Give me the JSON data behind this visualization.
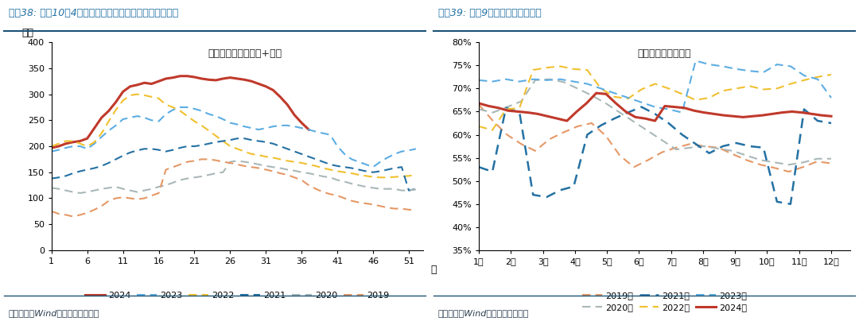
{
  "chart1": {
    "title": "国内沥青库存：社库+厂库",
    "xlabel": "周",
    "ylabel": "万吨",
    "header": "图表38: 截至10月4日，沥青延续快速去库、但绝对值仍高",
    "footer": "资料来源：Wind，国盛证券研究所",
    "ylim": [
      0,
      400
    ],
    "yticks": [
      0,
      50,
      100,
      150,
      200,
      250,
      300,
      350,
      400
    ],
    "xticks": [
      1,
      6,
      11,
      16,
      21,
      26,
      31,
      36,
      41,
      46,
      51
    ],
    "series": {
      "2024": {
        "color": "#c0392b",
        "linestyle": "solid",
        "linewidth": 2.2,
        "data_x": [
          1,
          2,
          3,
          4,
          5,
          6,
          7,
          8,
          9,
          10,
          11,
          12,
          13,
          14,
          15,
          16,
          17,
          18,
          19,
          20,
          21,
          22,
          23,
          24,
          25,
          26,
          27,
          28,
          29,
          30,
          31,
          32,
          33,
          34,
          35,
          36,
          37
        ],
        "data_y": [
          197,
          200,
          205,
          208,
          210,
          215,
          235,
          255,
          268,
          285,
          305,
          315,
          318,
          322,
          320,
          325,
          330,
          332,
          335,
          335,
          333,
          330,
          328,
          327,
          330,
          332,
          330,
          328,
          325,
          320,
          315,
          308,
          295,
          280,
          260,
          245,
          232
        ]
      },
      "2023": {
        "color": "#5dade2",
        "linestyle": "dashed",
        "linewidth": 1.5,
        "data_x": [
          1,
          2,
          3,
          4,
          5,
          6,
          7,
          8,
          9,
          10,
          11,
          12,
          13,
          14,
          15,
          16,
          17,
          18,
          19,
          20,
          21,
          22,
          23,
          24,
          25,
          26,
          27,
          28,
          29,
          30,
          31,
          32,
          33,
          34,
          35,
          36,
          37,
          38,
          39,
          40,
          41,
          42,
          43,
          44,
          45,
          46,
          47,
          48,
          49,
          50,
          51,
          52
        ],
        "data_y": [
          190,
          193,
          197,
          200,
          200,
          195,
          205,
          218,
          230,
          240,
          252,
          255,
          258,
          255,
          250,
          248,
          262,
          270,
          275,
          275,
          272,
          268,
          262,
          258,
          252,
          245,
          242,
          238,
          235,
          232,
          235,
          238,
          240,
          240,
          238,
          235,
          232,
          228,
          225,
          222,
          200,
          185,
          175,
          170,
          165,
          160,
          170,
          178,
          185,
          190,
          192,
          195
        ]
      },
      "2022": {
        "color": "#f0c030",
        "linestyle": "dashed",
        "linewidth": 1.5,
        "data_x": [
          1,
          2,
          3,
          4,
          5,
          6,
          7,
          8,
          9,
          10,
          11,
          12,
          13,
          14,
          15,
          16,
          17,
          18,
          19,
          20,
          21,
          22,
          23,
          24,
          25,
          26,
          27,
          28,
          29,
          30,
          31,
          32,
          33,
          34,
          35,
          36,
          37,
          38,
          39,
          40,
          41,
          42,
          43,
          44,
          45,
          46,
          47,
          48,
          49,
          50,
          51,
          52
        ],
        "data_y": [
          200,
          205,
          210,
          210,
          205,
          200,
          208,
          225,
          248,
          270,
          288,
          298,
          300,
          298,
          295,
          292,
          280,
          275,
          268,
          258,
          248,
          240,
          230,
          220,
          210,
          200,
          195,
          190,
          185,
          183,
          180,
          178,
          175,
          172,
          170,
          168,
          165,
          162,
          158,
          155,
          152,
          150,
          148,
          145,
          143,
          141,
          140,
          140,
          141,
          142,
          143,
          145
        ]
      },
      "2021": {
        "color": "#2471a3",
        "linestyle": "dashed",
        "linewidth": 1.5,
        "data_x": [
          1,
          2,
          3,
          4,
          5,
          6,
          7,
          8,
          9,
          10,
          11,
          12,
          13,
          14,
          15,
          16,
          17,
          18,
          19,
          20,
          21,
          22,
          23,
          24,
          25,
          26,
          27,
          28,
          29,
          30,
          31,
          32,
          33,
          34,
          35,
          36,
          37,
          38,
          39,
          40,
          41,
          42,
          43,
          44,
          45,
          46,
          47,
          48,
          49,
          50,
          51,
          52
        ],
        "data_y": [
          138,
          140,
          143,
          148,
          152,
          155,
          158,
          162,
          168,
          175,
          182,
          188,
          192,
          195,
          195,
          193,
          190,
          193,
          197,
          200,
          200,
          202,
          205,
          208,
          210,
          212,
          215,
          215,
          212,
          210,
          208,
          205,
          200,
          195,
          190,
          185,
          180,
          175,
          170,
          165,
          162,
          160,
          158,
          155,
          152,
          150,
          152,
          155,
          158,
          160,
          115,
          118
        ]
      },
      "2020": {
        "color": "#aab7b8",
        "linestyle": "dashed",
        "linewidth": 1.5,
        "data_x": [
          1,
          2,
          3,
          4,
          5,
          6,
          7,
          8,
          9,
          10,
          11,
          12,
          13,
          14,
          15,
          16,
          17,
          18,
          19,
          20,
          21,
          22,
          23,
          24,
          25,
          26,
          27,
          28,
          29,
          30,
          31,
          32,
          33,
          34,
          35,
          36,
          37,
          38,
          39,
          40,
          41,
          42,
          43,
          44,
          45,
          46,
          47,
          48,
          49,
          50,
          51,
          52
        ],
        "data_y": [
          120,
          118,
          115,
          112,
          110,
          112,
          115,
          118,
          120,
          122,
          118,
          115,
          112,
          115,
          118,
          122,
          125,
          130,
          135,
          138,
          140,
          142,
          145,
          148,
          150,
          170,
          172,
          170,
          168,
          165,
          162,
          160,
          158,
          155,
          153,
          150,
          148,
          145,
          142,
          140,
          135,
          132,
          128,
          125,
          122,
          120,
          118,
          118,
          118,
          115,
          115,
          117
        ]
      },
      "2019": {
        "color": "#e59866",
        "linestyle": "dashed",
        "linewidth": 1.5,
        "data_x": [
          1,
          2,
          3,
          4,
          5,
          6,
          7,
          8,
          9,
          10,
          11,
          12,
          13,
          14,
          15,
          16,
          17,
          18,
          19,
          20,
          21,
          22,
          23,
          24,
          25,
          26,
          27,
          28,
          29,
          30,
          31,
          32,
          33,
          34,
          35,
          36,
          37,
          38,
          39,
          40,
          41,
          42,
          43,
          44,
          45,
          46,
          47,
          48,
          49,
          50,
          51,
          52
        ],
        "data_y": [
          75,
          70,
          68,
          65,
          68,
          72,
          78,
          85,
          95,
          100,
          102,
          100,
          98,
          100,
          105,
          110,
          155,
          160,
          165,
          170,
          172,
          175,
          175,
          173,
          170,
          168,
          165,
          162,
          160,
          158,
          155,
          152,
          148,
          145,
          140,
          135,
          125,
          118,
          112,
          108,
          105,
          100,
          95,
          92,
          90,
          88,
          85,
          82,
          80,
          80,
          78,
          78
        ]
      }
    }
  },
  "chart2": {
    "title": "库容比：水泥：全国",
    "header": "图表39: 截至9月底，水泥库存续降",
    "footer": "资料来源：Wind，国盛证券研究所",
    "ylim": [
      0.35,
      0.8
    ],
    "yticks": [
      0.35,
      0.4,
      0.45,
      0.5,
      0.55,
      0.6,
      0.65,
      0.7,
      0.75,
      0.8
    ],
    "xtick_labels": [
      "1月",
      "2月",
      "3月",
      "4月",
      "5月",
      "6月",
      "7月",
      "8月",
      "9月",
      "10月",
      "11月",
      "12月"
    ],
    "series": {
      "2019年": {
        "color": "#e59866",
        "linestyle": "dashed",
        "linewidth": 1.5,
        "data": [
          0.665,
          0.63,
          0.6,
          0.58,
          0.565,
          0.59,
          0.605,
          0.618,
          0.625,
          0.598,
          0.555,
          0.53,
          0.545,
          0.562,
          0.572,
          0.58,
          0.575,
          0.572,
          0.558,
          0.545,
          0.535,
          0.528,
          0.52,
          0.53,
          0.542,
          0.538
        ]
      },
      "2020年": {
        "color": "#aab7b8",
        "linestyle": "dashed",
        "linewidth": 1.5,
        "data": [
          0.655,
          0.648,
          0.66,
          0.672,
          0.718,
          0.72,
          0.714,
          0.7,
          0.685,
          0.668,
          0.648,
          0.628,
          0.608,
          0.588,
          0.568,
          0.572,
          0.575,
          0.57,
          0.565,
          0.555,
          0.545,
          0.54,
          0.535,
          0.54,
          0.548,
          0.548
        ]
      },
      "2021年": {
        "color": "#2471a3",
        "linestyle": "dashed",
        "linewidth": 1.8,
        "data": [
          0.53,
          0.52,
          0.658,
          0.648,
          0.47,
          0.465,
          0.48,
          0.488,
          0.6,
          0.62,
          0.635,
          0.648,
          0.66,
          0.645,
          0.625,
          0.6,
          0.58,
          0.56,
          0.575,
          0.582,
          0.575,
          0.572,
          0.455,
          0.45,
          0.655,
          0.63,
          0.625
        ]
      },
      "2022年": {
        "color": "#f0c030",
        "linestyle": "dashed",
        "linewidth": 1.5,
        "data": [
          0.618,
          0.61,
          0.655,
          0.658,
          0.74,
          0.745,
          0.748,
          0.742,
          0.74,
          0.7,
          0.682,
          0.678,
          0.698,
          0.71,
          0.7,
          0.688,
          0.675,
          0.68,
          0.695,
          0.7,
          0.705,
          0.698,
          0.7,
          0.71,
          0.718,
          0.725,
          0.73
        ]
      },
      "2023年": {
        "color": "#5dade2",
        "linestyle": "dashed",
        "linewidth": 1.5,
        "data": [
          0.718,
          0.715,
          0.72,
          0.715,
          0.72,
          0.718,
          0.72,
          0.715,
          0.71,
          0.7,
          0.69,
          0.68,
          0.67,
          0.66,
          0.655,
          0.648,
          0.76,
          0.752,
          0.748,
          0.742,
          0.738,
          0.735,
          0.752,
          0.748,
          0.728,
          0.72,
          0.68
        ]
      },
      "2024年": {
        "color": "#c0392b",
        "linestyle": "solid",
        "linewidth": 2.2,
        "data": [
          0.668,
          0.662,
          0.658,
          0.652,
          0.65,
          0.648,
          0.645,
          0.64,
          0.635,
          0.63,
          0.65,
          0.668,
          0.69,
          0.688,
          0.668,
          0.65,
          0.638,
          0.635,
          0.63,
          0.662,
          0.66,
          0.658,
          0.652,
          0.648,
          0.645,
          0.642,
          0.64,
          0.638,
          0.64,
          0.642,
          0.645,
          0.648,
          0.65,
          0.648,
          0.645,
          0.642,
          0.64
        ]
      }
    }
  },
  "bg_color": "#ffffff",
  "title_color": "#2471a3",
  "header_line_color": "#1a5276",
  "footer_line_color": "#1a5276"
}
